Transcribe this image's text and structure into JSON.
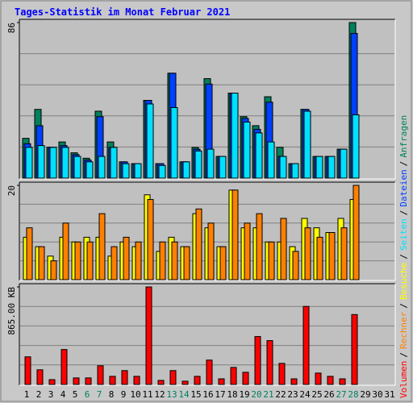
{
  "chart_data": [
    {
      "type": "bar",
      "title": "Tages-Statistik im Monat Februar 2021",
      "categories": [
        "1",
        "2",
        "3",
        "4",
        "5",
        "6",
        "7",
        "8",
        "9",
        "10",
        "11",
        "12",
        "13",
        "14",
        "15",
        "16",
        "17",
        "18",
        "19",
        "20",
        "21",
        "22",
        "23",
        "24",
        "25",
        "26",
        "27",
        "28",
        "29",
        "30",
        "31"
      ],
      "weekend_indexes": [
        5,
        6,
        12,
        13,
        19,
        20,
        26,
        27
      ],
      "weekend_color": "#008060",
      "legend_separator": "/",
      "ylim": [
        0,
        86
      ],
      "yticks": [
        86
      ],
      "series": [
        {
          "name": "Anfragen",
          "color": "#00805c",
          "values": [
            22,
            38,
            17,
            20,
            14,
            11,
            37,
            20,
            9,
            8,
            43,
            8,
            58,
            9,
            17,
            55,
            12,
            47,
            34,
            29,
            45,
            17,
            8,
            38,
            12,
            12,
            16,
            86,
            null,
            null,
            null
          ]
        },
        {
          "name": "Dateien",
          "color": "#0040ff",
          "values": [
            19,
            29,
            17,
            18,
            13,
            10,
            34,
            17,
            9,
            8,
            43,
            8,
            58,
            9,
            16,
            52,
            12,
            47,
            33,
            27,
            42,
            12,
            8,
            38,
            12,
            12,
            16,
            80,
            null,
            null,
            null
          ]
        },
        {
          "name": "Seiten",
          "color": "#00e0ff",
          "values": [
            17,
            18,
            17,
            17,
            12,
            9,
            12,
            17,
            8,
            8,
            41,
            7,
            39,
            9,
            15,
            16,
            12,
            47,
            31,
            25,
            20,
            12,
            8,
            37,
            12,
            12,
            16,
            35,
            null,
            null,
            null
          ]
        }
      ]
    },
    {
      "type": "bar",
      "ylim": [
        0,
        20
      ],
      "yticks": [
        20
      ],
      "series": [
        {
          "name": "Besuche",
          "color": "#ffff00",
          "values": [
            9,
            7,
            5,
            9,
            8,
            9,
            9,
            5,
            8,
            7,
            18,
            6,
            9,
            7,
            14,
            11,
            7,
            19,
            11,
            11,
            8,
            8,
            7,
            13,
            11,
            10,
            13,
            17,
            null,
            null,
            null
          ]
        },
        {
          "name": "Rechner",
          "color": "#ff8000",
          "values": [
            11,
            7,
            4,
            12,
            8,
            8,
            14,
            7,
            9,
            8,
            17,
            8,
            8,
            7,
            15,
            12,
            7,
            19,
            12,
            14,
            8,
            13,
            6,
            11,
            9,
            10,
            11,
            20,
            null,
            null,
            null
          ]
        }
      ]
    },
    {
      "type": "bar",
      "ylim": [
        0,
        865
      ],
      "yticks": [
        {
          "value": 865,
          "label": "865.00 KB"
        }
      ],
      "series": [
        {
          "name": "Volumen",
          "color": "#ff0000",
          "values": [
            245,
            130,
            43,
            310,
            58,
            58,
            166,
            72,
            123,
            72,
            865,
            36,
            123,
            29,
            72,
            216,
            50,
            151,
            108,
            425,
            389,
            187,
            50,
            692,
            101,
            72,
            50,
            620,
            null,
            null,
            null
          ]
        }
      ]
    }
  ]
}
